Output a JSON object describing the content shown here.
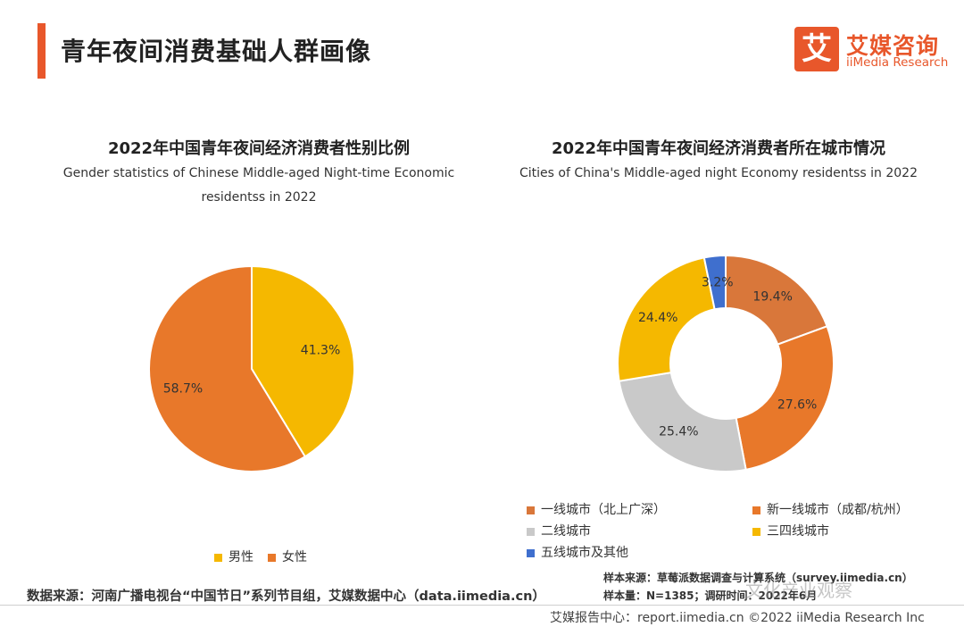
{
  "header": {
    "title": "青年夜间消费基础人群画像",
    "logo_mark": "艾",
    "logo_cn": "艾媒咨询",
    "logo_en": "iiMedia Research"
  },
  "left_chart": {
    "title_cn": "2022年中国青年夜间经济消费者性别比例",
    "title_en_line1": "Gender statistics of Chinese Middle-aged Night-time Economic",
    "title_en_line2": "residentss in 2022",
    "legend": [
      {
        "label": "男性",
        "color": "#f5b800"
      },
      {
        "label": "女性",
        "color": "#e8782a"
      }
    ]
  },
  "right_chart": {
    "title_cn": "2022年中国青年夜间经济消费者所在城市情况",
    "title_en": "Cities of China's Middle-aged night Economy residentss in 2022",
    "legend": [
      {
        "label": "一线城市（北上广深）",
        "color": "#d9773a"
      },
      {
        "label": "新一线城市（成都/杭州）",
        "color": "#e8782a"
      },
      {
        "label": "二线城市",
        "color": "#c9c9c9"
      },
      {
        "label": "三四线城市",
        "color": "#f5b800"
      },
      {
        "label": "五线城市及其他",
        "color": "#3f6fce"
      }
    ]
  },
  "chart_data": [
    {
      "type": "pie",
      "title": "2022年中国青年夜间经济消费者性别比例",
      "categories": [
        "男性",
        "女性"
      ],
      "values": [
        41.3,
        58.7
      ],
      "labels": [
        "41.3%",
        "58.7%"
      ],
      "colors": [
        "#f5b800",
        "#e8782a"
      ],
      "legend_position": "bottom"
    },
    {
      "type": "pie",
      "subtype": "donut",
      "title": "2022年中国青年夜间经济消费者所在城市情况",
      "categories": [
        "一线城市（北上广深）",
        "新一线城市（成都/杭州）",
        "二线城市",
        "三四线城市",
        "五线城市及其他"
      ],
      "values": [
        19.4,
        27.6,
        25.4,
        24.4,
        3.2
      ],
      "labels": [
        "19.4%",
        "27.6%",
        "25.4%",
        "24.4%",
        "3.2%"
      ],
      "colors": [
        "#d9773a",
        "#e8782a",
        "#c9c9c9",
        "#f5b800",
        "#3f6fce"
      ],
      "legend_position": "bottom"
    }
  ],
  "notes": {
    "sample_source": "样本来源：草莓派数据调查与计算系统（survey.iimedia.cn）",
    "sample_size": "样本量：N=1385；调研时间：2022年6月"
  },
  "source": "数据来源：河南广播电视台“中国节日”系列节目组，艾媒数据中心（data.iimedia.cn）",
  "footer": "艾媒报告中心：report.iimedia.cn  ©2022  iiMedia Research  Inc",
  "watermark": "文化产业观察"
}
